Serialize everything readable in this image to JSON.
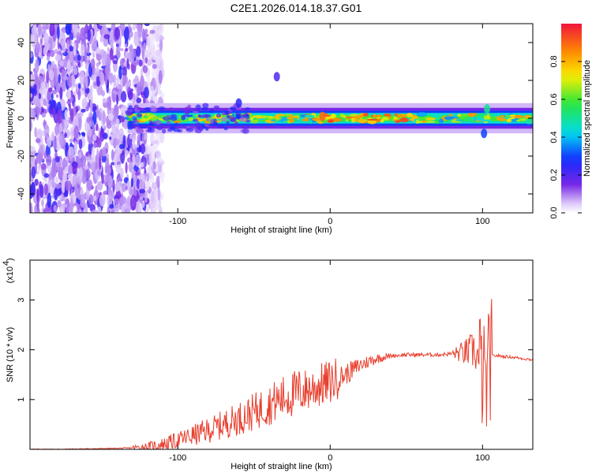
{
  "page_title": "C2E1.2026.014.18.37.G01",
  "chart_data": [
    {
      "type": "heatmap",
      "title": "C2E1.2026.014.18.37.G01",
      "xlabel": "Height of straight line (km)",
      "ylabel": "Frequency (Hz)",
      "xlim": [
        -197,
        133
      ],
      "ylim": [
        -50,
        50
      ],
      "x_ticks": [
        -100,
        0,
        100
      ],
      "x_tick_labels": [
        "-100",
        "0",
        "100"
      ],
      "y_ticks": [
        -40,
        -20,
        0,
        20,
        40
      ],
      "y_tick_labels": [
        "-40",
        "-20",
        "0",
        "20",
        "40"
      ],
      "colorbar": {
        "label": "Normalized spectral amplitude",
        "range": [
          0,
          1
        ],
        "ticks": [
          0.0,
          0.2,
          0.4,
          0.6,
          0.8
        ],
        "tick_labels": [
          "0.0",
          "0.2",
          "0.4",
          "0.6",
          "0.8"
        ]
      },
      "band": {
        "center_frequency": 0,
        "x_start": -133,
        "x_end": 133,
        "noise_x_end": -120
      },
      "features": [
        {
          "x": -60,
          "frequency": 8,
          "amplitude": 0.25
        },
        {
          "x": -35,
          "frequency": 22,
          "amplitude": 0.2
        },
        {
          "x": -5,
          "frequency": 1,
          "amplitude": 0.9
        },
        {
          "x": 101,
          "frequency": -8,
          "amplitude": 0.3
        },
        {
          "x": 103,
          "frequency": 5,
          "amplitude": 0.5
        }
      ]
    },
    {
      "type": "line",
      "xlabel": "Height of straight line (km)",
      "ylabel": "SNR (10 * v/v)",
      "y_multiplier": "(x10",
      "y_multiplier_exp": "4",
      "y_multiplier_close": ")",
      "xlim": [
        -197,
        133
      ],
      "ylim": [
        0,
        3.8
      ],
      "x_ticks": [
        -100,
        0,
        100
      ],
      "x_tick_labels": [
        "-100",
        "0",
        "100"
      ],
      "y_ticks": [
        1,
        2,
        3
      ],
      "y_tick_labels": [
        "1",
        "2",
        "3"
      ],
      "line_color": "#e8402f",
      "series": [
        {
          "name": "SNR",
          "x": [
            -197,
            -180,
            -160,
            -140,
            -130,
            -120,
            -110,
            -100,
            -90,
            -80,
            -70,
            -60,
            -50,
            -40,
            -30,
            -20,
            -10,
            0,
            10,
            20,
            30,
            40,
            50,
            60,
            70,
            80,
            90,
            95,
            100,
            102,
            104,
            106,
            110,
            120,
            133
          ],
          "y": [
            0.0,
            0.0,
            0.01,
            0.02,
            0.03,
            0.05,
            0.1,
            0.18,
            0.28,
            0.38,
            0.5,
            0.62,
            0.75,
            0.9,
            1.05,
            1.15,
            1.25,
            1.35,
            1.5,
            1.7,
            1.82,
            1.88,
            1.9,
            1.9,
            1.9,
            1.92,
            1.95,
            2.0,
            1.5,
            1.2,
            1.6,
            1.88,
            1.88,
            1.85,
            1.8
          ]
        }
      ]
    }
  ]
}
